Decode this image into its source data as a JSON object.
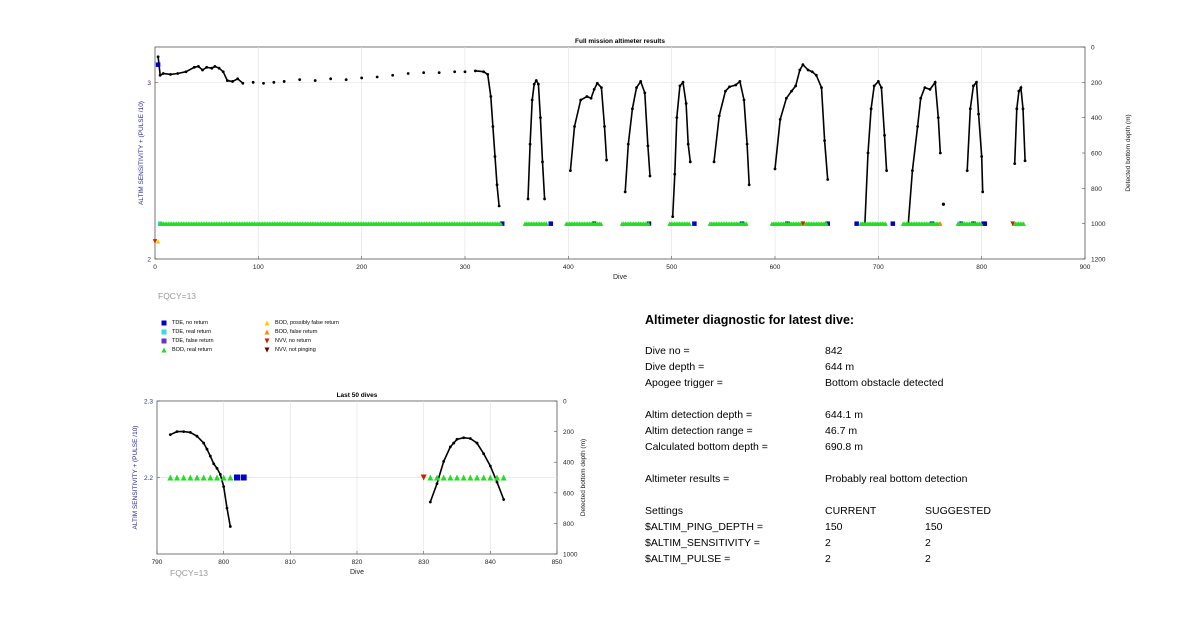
{
  "chart_data": [
    {
      "type": "scatter",
      "title": "Full mission altimeter results",
      "xlabel": "Dive",
      "ylabel": "ALTIM SENSITIVITY + (PULSE /10)",
      "ylabel_right": "Detected bottom depth (m)",
      "xlim": [
        0,
        900
      ],
      "ylim": [
        2,
        3.2
      ],
      "ylim_right": [
        1200,
        0
      ],
      "xticks": [
        "0",
        "100",
        "200",
        "300",
        "400",
        "500",
        "600",
        "700",
        "800",
        "900"
      ],
      "yticks": [
        "2",
        "3"
      ],
      "yticks_right": [
        "0",
        "200",
        "400",
        "600",
        "800",
        "1000",
        "1200"
      ],
      "annotation": "FQCY=13",
      "grid": true,
      "depth_profile": [
        [
          3,
          55
        ],
        [
          5,
          160
        ],
        [
          8,
          150
        ],
        [
          15,
          155
        ],
        [
          22,
          150
        ],
        [
          30,
          140
        ],
        [
          38,
          115
        ],
        [
          42,
          110
        ],
        [
          46,
          130
        ],
        [
          50,
          115
        ],
        [
          55,
          120
        ],
        [
          58,
          110
        ],
        [
          62,
          120
        ],
        [
          66,
          140
        ],
        [
          70,
          190
        ],
        [
          75,
          195
        ],
        [
          80,
          180
        ],
        [
          85,
          205
        ],
        [
          95,
          200
        ],
        [
          105,
          205
        ],
        [
          115,
          200
        ],
        [
          125,
          195
        ],
        [
          140,
          185
        ],
        [
          155,
          190
        ],
        [
          170,
          180
        ],
        [
          185,
          185
        ],
        [
          200,
          175
        ],
        [
          215,
          170
        ],
        [
          230,
          160
        ],
        [
          245,
          150
        ],
        [
          260,
          145
        ],
        [
          275,
          145
        ],
        [
          290,
          140
        ],
        [
          300,
          140
        ],
        [
          310,
          135
        ],
        [
          318,
          140
        ],
        [
          322,
          155
        ],
        [
          325,
          280
        ],
        [
          327,
          450
        ],
        [
          329,
          620
        ],
        [
          331,
          780
        ],
        [
          333,
          900
        ],
        [
          361,
          860
        ],
        [
          363,
          550
        ],
        [
          365,
          300
        ],
        [
          367,
          210
        ],
        [
          369,
          190
        ],
        [
          371,
          210
        ],
        [
          373,
          400
        ],
        [
          375,
          650
        ],
        [
          377,
          860
        ],
        [
          402,
          700
        ],
        [
          406,
          450
        ],
        [
          412,
          300
        ],
        [
          418,
          280
        ],
        [
          422,
          290
        ],
        [
          425,
          240
        ],
        [
          428,
          205
        ],
        [
          432,
          230
        ],
        [
          435,
          450
        ],
        [
          437,
          640
        ],
        [
          455,
          820
        ],
        [
          458,
          550
        ],
        [
          462,
          350
        ],
        [
          466,
          230
        ],
        [
          470,
          195
        ],
        [
          474,
          260
        ],
        [
          477,
          560
        ],
        [
          479,
          730
        ],
        [
          501,
          960
        ],
        [
          503,
          720
        ],
        [
          505,
          400
        ],
        [
          508,
          220
        ],
        [
          511,
          200
        ],
        [
          514,
          320
        ],
        [
          516,
          550
        ],
        [
          518,
          650
        ],
        [
          541,
          650
        ],
        [
          546,
          390
        ],
        [
          552,
          250
        ],
        [
          556,
          225
        ],
        [
          562,
          215
        ],
        [
          566,
          195
        ],
        [
          570,
          300
        ],
        [
          573,
          550
        ],
        [
          575,
          780
        ],
        [
          600,
          690
        ],
        [
          605,
          410
        ],
        [
          611,
          290
        ],
        [
          616,
          250
        ],
        [
          620,
          220
        ],
        [
          624,
          130
        ],
        [
          627,
          100
        ],
        [
          632,
          130
        ],
        [
          636,
          140
        ],
        [
          640,
          160
        ],
        [
          645,
          230
        ],
        [
          648,
          530
        ],
        [
          651,
          750
        ],
        [
          687,
          1000
        ],
        [
          690,
          600
        ],
        [
          693,
          350
        ],
        [
          696,
          220
        ],
        [
          700,
          195
        ],
        [
          703,
          230
        ],
        [
          706,
          500
        ],
        [
          708,
          700
        ],
        [
          729,
          1000
        ],
        [
          733,
          700
        ],
        [
          738,
          450
        ],
        [
          741,
          290
        ],
        [
          745,
          230
        ],
        [
          750,
          240
        ],
        [
          755,
          200
        ],
        [
          758,
          400
        ],
        [
          760,
          600
        ],
        [
          786,
          700
        ],
        [
          789,
          350
        ],
        [
          792,
          220
        ],
        [
          795,
          200
        ],
        [
          797,
          380
        ],
        [
          800,
          620
        ],
        [
          801,
          820
        ],
        [
          832,
          660
        ],
        [
          834,
          350
        ],
        [
          836,
          250
        ],
        [
          838,
          230
        ],
        [
          840,
          350
        ],
        [
          842,
          644
        ]
      ],
      "series": [
        {
          "name": "TDE, no return",
          "color": "#0000cc",
          "marker": "square",
          "points": [
            [
              3,
              3.1
            ],
            [
              336,
              2.2
            ],
            [
              383,
              2.2
            ],
            [
              425,
              2.2
            ],
            [
              478,
              2.2
            ],
            [
              522,
              2.2
            ],
            [
              568,
              2.2
            ],
            [
              612,
              2.2
            ],
            [
              651,
              2.2
            ],
            [
              679,
              2.2
            ],
            [
              714,
              2.2
            ],
            [
              752,
              2.2
            ],
            [
              780,
              2.2
            ],
            [
              792,
              2.2
            ],
            [
              802,
              2.2
            ],
            [
              803,
              2.2
            ]
          ]
        },
        {
          "name": "TDE, real return",
          "color": "#33dddd",
          "marker": "square",
          "points": [
            [
              5,
              2.2
            ]
          ]
        },
        {
          "name": "TDE, false return",
          "color": "#6633cc",
          "marker": "square",
          "points": []
        },
        {
          "name": "BOD, real return",
          "color": "#22dd22",
          "marker": "triangle-up",
          "ranges": [
            [
              5,
              335
            ],
            [
              358,
              380
            ],
            [
              398,
              432
            ],
            [
              452,
              478
            ],
            [
              498,
              518
            ],
            [
              537,
              573
            ],
            [
              597,
              650
            ],
            [
              683,
              708
            ],
            [
              724,
              760
            ],
            [
              777,
              800
            ],
            [
              831,
              842
            ]
          ]
        },
        {
          "name": "BOD, possibly false return",
          "color": "#ffcc00",
          "marker": "triangle-up",
          "points": [
            [
              3,
              2.1
            ]
          ]
        },
        {
          "name": "BOD, false return",
          "color": "#ff8800",
          "marker": "triangle-up",
          "points": [
            [
              627,
              2.2
            ],
            [
              760,
              2.2
            ]
          ]
        },
        {
          "name": "NVV, no return",
          "color": "#cc2200",
          "marker": "triangle-down",
          "points": [
            [
              0,
              2.1
            ],
            [
              627,
              2.2
            ],
            [
              830,
              2.2
            ]
          ]
        },
        {
          "name": "NVV, not pinging",
          "color": "#660000",
          "marker": "triangle-down",
          "points": []
        }
      ],
      "outliers": [
        [
          763,
          890
        ]
      ]
    },
    {
      "type": "scatter",
      "title": "Last 50 dives",
      "xlabel": "Dive",
      "ylabel": "ALTIM SENSITIVITY + (PULSE /10)",
      "ylabel_right": "Detected bottom depth (m)",
      "xlim": [
        790,
        850
      ],
      "ylim": [
        2.1,
        2.3
      ],
      "ylim_right": [
        1000,
        0
      ],
      "xticks": [
        "790",
        "800",
        "810",
        "820",
        "830",
        "840",
        "850"
      ],
      "yticks": [
        "2.2",
        "2.3"
      ],
      "yticks_right": [
        "0",
        "200",
        "400",
        "600",
        "800",
        "1000"
      ],
      "annotation": "FQCY=13",
      "grid": true,
      "depth_profile": [
        [
          [
            792,
            220
          ],
          [
            793,
            200
          ],
          [
            794,
            200
          ],
          [
            795,
            205
          ],
          [
            796,
            230
          ],
          [
            797,
            275
          ],
          [
            797.5,
            315
          ],
          [
            798,
            360
          ],
          [
            798.5,
            410
          ],
          [
            799,
            440
          ],
          [
            799.5,
            480
          ],
          [
            800,
            560
          ],
          [
            800.5,
            700
          ],
          [
            801,
            820
          ]
        ],
        [
          [
            831,
            660
          ],
          [
            832,
            540
          ],
          [
            833,
            395
          ],
          [
            834,
            300
          ],
          [
            834.5,
            275
          ],
          [
            835,
            250
          ],
          [
            836,
            240
          ],
          [
            837,
            245
          ],
          [
            838,
            275
          ],
          [
            839,
            345
          ],
          [
            840,
            425
          ],
          [
            841,
            530
          ],
          [
            842,
            644
          ]
        ]
      ],
      "series": [
        {
          "name": "BOD, real return",
          "color": "#22dd22",
          "marker": "triangle-up",
          "x": [
            792,
            793,
            794,
            795,
            796,
            797,
            798,
            799,
            800,
            801,
            831,
            832,
            833,
            834,
            835,
            836,
            837,
            838,
            839,
            840,
            841,
            842
          ],
          "y": 2.2
        },
        {
          "name": "TDE, no return",
          "color": "#0000cc",
          "marker": "square",
          "x": [
            802,
            803
          ],
          "y": 2.2
        },
        {
          "name": "NVV, no return",
          "color": "#cc2200",
          "marker": "triangle-down",
          "x": [
            830
          ],
          "y": 2.2
        }
      ]
    }
  ],
  "legend": [
    {
      "label": "TDE, no return",
      "color": "#0000cc",
      "marker": "square"
    },
    {
      "label": "TDE, real return",
      "color": "#33dddd",
      "marker": "square"
    },
    {
      "label": "TDE, false return",
      "color": "#6633cc",
      "marker": "square"
    },
    {
      "label": "BOD, real return",
      "color": "#22dd22",
      "marker": "triangle-up"
    },
    {
      "label": "BOD, possibly false return",
      "color": "#ffcc00",
      "marker": "triangle-up"
    },
    {
      "label": "BOD, false return",
      "color": "#ff8800",
      "marker": "triangle-up"
    },
    {
      "label": "NVV, no return",
      "color": "#cc2200",
      "marker": "triangle-down"
    },
    {
      "label": "NVV, not pinging",
      "color": "#660000",
      "marker": "triangle-down"
    }
  ],
  "diagnostic": {
    "title": "Altimeter diagnostic for latest dive:",
    "rows": [
      {
        "label": "Dive no =",
        "value": "842"
      },
      {
        "label": "Dive depth =",
        "value": "644 m"
      },
      {
        "label": "Apogee trigger =",
        "value": "Bottom obstacle detected"
      },
      {
        "label": "Altim detection depth =",
        "value": "644.1 m"
      },
      {
        "label": "Altim detection range =",
        "value": "46.7 m"
      },
      {
        "label": "Calculated bottom depth =",
        "value": "690.8 m"
      },
      {
        "label": "Altimeter results =",
        "value": "Probably real bottom detection"
      }
    ],
    "settings": {
      "header": [
        "Settings",
        "CURRENT",
        "SUGGESTED"
      ],
      "rows": [
        [
          "$ALTIM_PING_DEPTH =",
          "150",
          "150"
        ],
        [
          "$ALTIM_SENSITIVITY =",
          "2",
          "2"
        ],
        [
          "$ALTIM_PULSE =",
          "2",
          "2"
        ]
      ]
    }
  }
}
